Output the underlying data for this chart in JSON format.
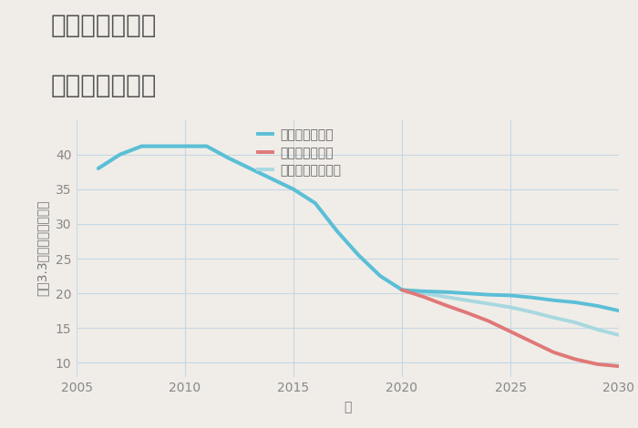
{
  "title_line1": "兵庫県大塩駅の",
  "title_line2": "土地の価格推移",
  "xlabel": "年",
  "ylabel": "坪（3.3㎡）単価（万円）",
  "background_color": "#f0ede8",
  "plot_background": "#f0ede8",
  "good_scenario": {
    "label": "グッドシナリオ",
    "color": "#5bbfd6",
    "x": [
      2006,
      2007,
      2008,
      2009,
      2010,
      2011,
      2012,
      2013,
      2014,
      2015,
      2016,
      2017,
      2018,
      2019,
      2020,
      2021,
      2022,
      2023,
      2024,
      2025,
      2026,
      2027,
      2028,
      2029,
      2030
    ],
    "y": [
      38.0,
      40.0,
      41.2,
      41.2,
      41.2,
      41.2,
      39.5,
      38.0,
      36.5,
      35.0,
      33.0,
      29.0,
      25.5,
      22.5,
      20.5,
      20.3,
      20.2,
      20.0,
      19.8,
      19.7,
      19.4,
      19.0,
      18.7,
      18.2,
      17.5
    ]
  },
  "normal_scenario": {
    "label": "ノーマルシナリオ",
    "color": "#a8d8e0",
    "x": [
      2006,
      2007,
      2008,
      2009,
      2010,
      2011,
      2012,
      2013,
      2014,
      2015,
      2016,
      2017,
      2018,
      2019,
      2020,
      2021,
      2022,
      2023,
      2024,
      2025,
      2026,
      2027,
      2028,
      2029,
      2030
    ],
    "y": [
      38.0,
      40.0,
      41.2,
      41.2,
      41.2,
      41.2,
      39.5,
      38.0,
      36.5,
      35.0,
      33.0,
      29.0,
      25.5,
      22.5,
      20.5,
      20.0,
      19.5,
      19.0,
      18.5,
      18.0,
      17.3,
      16.5,
      15.8,
      14.8,
      14.0
    ]
  },
  "bad_scenario": {
    "label": "バッドシナリオ",
    "color": "#e07878",
    "x": [
      2020,
      2021,
      2022,
      2023,
      2024,
      2025,
      2026,
      2027,
      2028,
      2029,
      2030
    ],
    "y": [
      20.5,
      19.5,
      18.3,
      17.2,
      16.0,
      14.5,
      13.0,
      11.5,
      10.5,
      9.8,
      9.5
    ]
  },
  "xlim": [
    2005,
    2030
  ],
  "ylim": [
    8,
    45
  ],
  "yticks": [
    10,
    15,
    20,
    25,
    30,
    35,
    40
  ],
  "xticks": [
    2005,
    2010,
    2015,
    2020,
    2025,
    2030
  ],
  "grid_color": "#c5d8e5",
  "linewidth": 2.8,
  "title_fontsize": 20,
  "tick_fontsize": 10,
  "label_fontsize": 10,
  "legend_fontsize": 10,
  "title_color": "#555555",
  "tick_color": "#888888",
  "label_color": "#777777"
}
